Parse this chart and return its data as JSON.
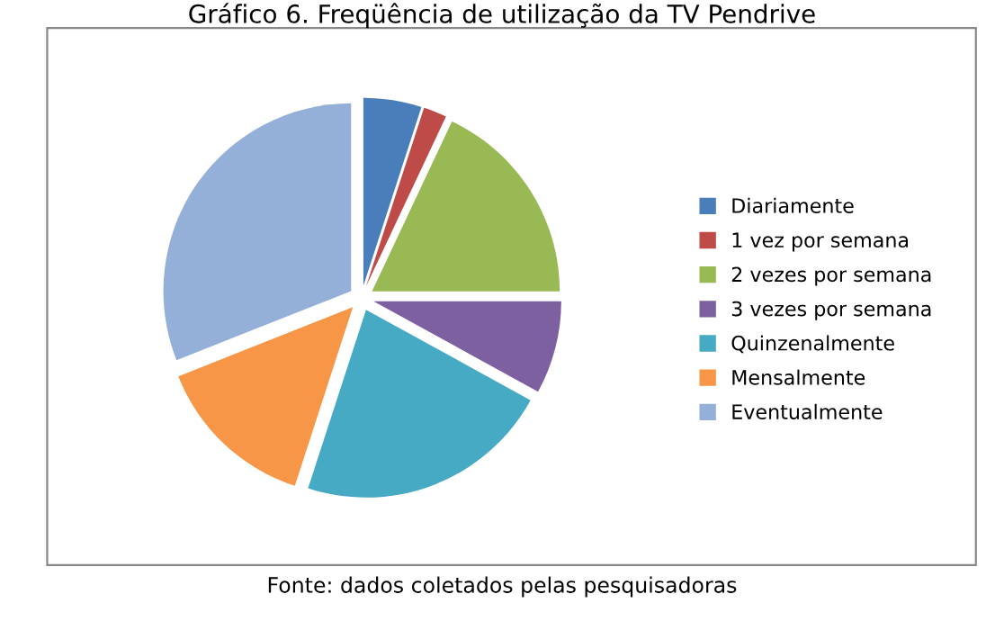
{
  "chart_data": {
    "type": "pie",
    "title": "Gráfico 6. Freqüência de utilização da TV Pendrive",
    "categories": [
      "Diariamente",
      "1 vez por semana",
      "2 vezes por semana",
      "3 vezes por semana",
      "Quinzenalmente",
      "Mensalmente",
      "Eventualmente"
    ],
    "values": [
      5,
      2,
      18,
      8,
      22,
      14,
      31
    ],
    "colors": [
      "#4a7ebb",
      "#be4b48",
      "#98b954",
      "#7d60a0",
      "#46aac5",
      "#f79646",
      "#95b0d8"
    ],
    "legend": "right",
    "annotations": [
      "Fonte: dados coletados pelas pesquisadoras"
    ]
  }
}
